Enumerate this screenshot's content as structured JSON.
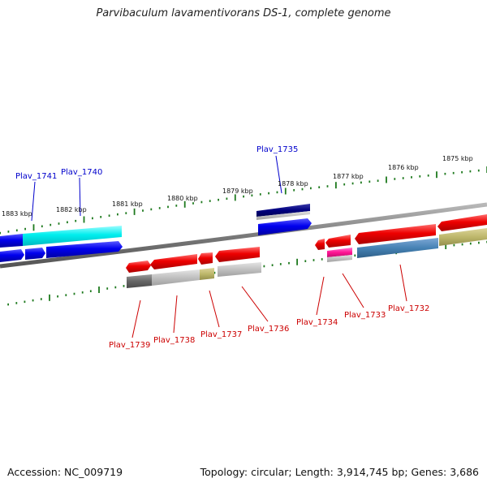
{
  "title": "Parvibaculum lavamentivorans DS-1, complete genome",
  "footer": {
    "accession": "Accession: NC_009719",
    "summary": "Topology: circular; Length: 3,914,745 bp; Genes: 3,686"
  },
  "colors": {
    "backbone": "#7a7a7a",
    "tick": "#1f7a1f",
    "label_top": "#0000cc",
    "label_bottom": "#cc0000"
  },
  "scale_labels": [
    "1883 kbp",
    "1882 kbp",
    "1881 kbp",
    "1880 kbp",
    "1879 kbp",
    "1878 kbp",
    "1877 kbp",
    "1876 kbp",
    "1875 kbp"
  ],
  "gene_labels_top": [
    "Plav_1741",
    "Plav_1740",
    "Plav_1735"
  ],
  "gene_labels_bottom": [
    "Plav_1739",
    "Plav_1738",
    "Plav_1737",
    "Plav_1736",
    "Plav_1734",
    "Plav_1733",
    "Plav_1732"
  ],
  "features": [
    "cyan-cds-upper",
    "blue-cds-left-upper",
    "blue-cds-left-lower",
    "blue-cds-mid",
    "blue-cds-long",
    "navy-cds-1735",
    "blue-cds-1735",
    "red-cds-1739",
    "red-cds-1738",
    "red-cds-1737",
    "red-cds-1736",
    "gray-bar-1739",
    "lightgray-bar-1738",
    "olive-bar-1737",
    "lightgray-bar-1736",
    "red-cds-1734-small",
    "red-cds-1734",
    "magenta-bar-1733",
    "red-cds-1732",
    "steelblue-bar-1732",
    "red-cds-right",
    "olive-bar-right"
  ]
}
